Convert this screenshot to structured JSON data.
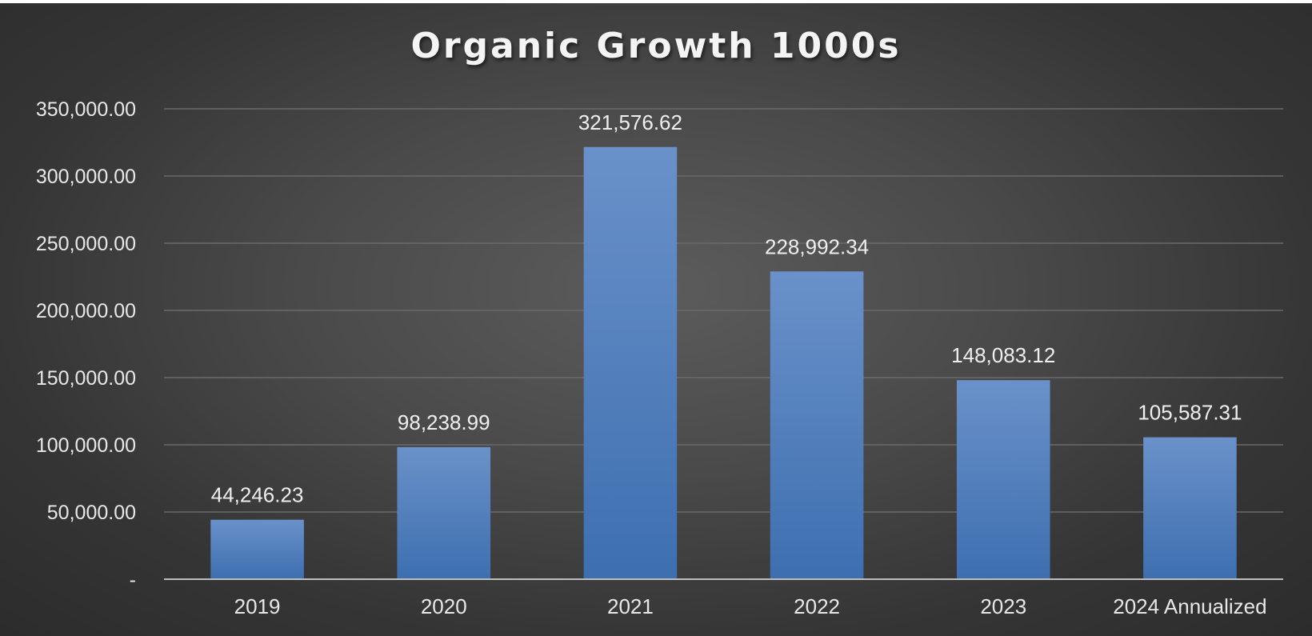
{
  "chart_data": {
    "type": "bar",
    "title": "Organic Growth 1000s",
    "xlabel": "",
    "ylabel": "",
    "categories": [
      "2019",
      "2020",
      "2021",
      "2022",
      "2023",
      "2024 Annualized"
    ],
    "values": [
      44246.23,
      98238.99,
      321576.62,
      228992.34,
      148083.12,
      105587.31
    ],
    "value_labels": [
      "44,246.23",
      "98,238.99",
      "321,576.62",
      "228,992.34",
      "148,083.12",
      "105,587.31"
    ],
    "ylim": [
      0,
      350000
    ],
    "yticks": [
      0,
      50000,
      100000,
      150000,
      200000,
      250000,
      300000,
      350000
    ],
    "ytick_labels": [
      "-",
      "50,000.00",
      "100,000.00",
      "150,000.00",
      "200,000.00",
      "250,000.00",
      "300,000.00",
      "350,000.00"
    ],
    "grid": true,
    "legend": "none",
    "colors": {
      "bar_top": "#6a91c9",
      "bar_bottom": "#3d6fb0",
      "grid": "#6a6a6a",
      "axis": "#bdbdbd"
    }
  }
}
